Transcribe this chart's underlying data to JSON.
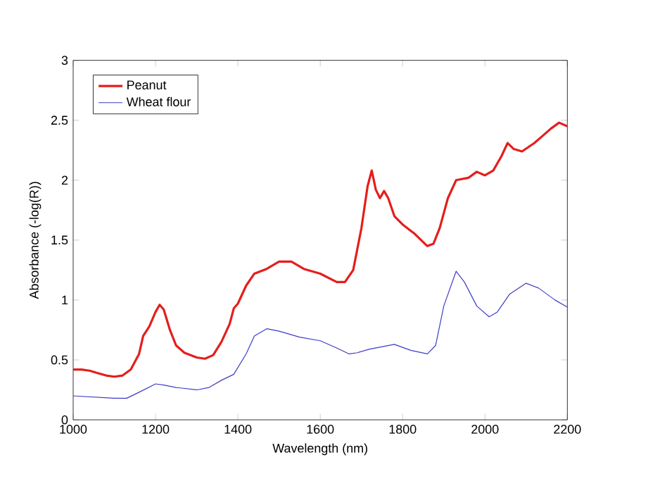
{
  "chart_data": {
    "type": "line",
    "xlabel": "Wavelength (nm)",
    "ylabel": "Absorbance (-log(R))",
    "xlim": [
      1000,
      2200
    ],
    "ylim": [
      0,
      3
    ],
    "xticks": [
      1000,
      1200,
      1400,
      1600,
      1800,
      2000,
      2200
    ],
    "yticks": [
      0,
      0.5,
      1,
      1.5,
      2,
      2.5,
      3
    ],
    "grid": false,
    "legend": "top left",
    "marker": "none",
    "line_style": "solid",
    "series": [
      {
        "name": "Peanut",
        "color": "#e41e1c",
        "x": [
          1000,
          1020,
          1040,
          1060,
          1080,
          1100,
          1120,
          1140,
          1160,
          1170,
          1185,
          1200,
          1210,
          1220,
          1235,
          1250,
          1270,
          1300,
          1320,
          1340,
          1360,
          1380,
          1390,
          1400,
          1420,
          1440,
          1470,
          1500,
          1530,
          1560,
          1600,
          1640,
          1660,
          1680,
          1700,
          1715,
          1725,
          1735,
          1745,
          1755,
          1765,
          1780,
          1800,
          1830,
          1860,
          1875,
          1890,
          1910,
          1930,
          1960,
          1980,
          2000,
          2020,
          2040,
          2055,
          2070,
          2090,
          2120,
          2140,
          2160,
          2180,
          2200
        ],
        "values": [
          0.42,
          0.42,
          0.41,
          0.39,
          0.37,
          0.36,
          0.37,
          0.42,
          0.55,
          0.7,
          0.78,
          0.9,
          0.96,
          0.92,
          0.75,
          0.62,
          0.56,
          0.52,
          0.51,
          0.54,
          0.65,
          0.8,
          0.93,
          0.97,
          1.12,
          1.22,
          1.26,
          1.32,
          1.32,
          1.26,
          1.22,
          1.15,
          1.15,
          1.25,
          1.6,
          1.95,
          2.08,
          1.92,
          1.85,
          1.91,
          1.85,
          1.7,
          1.63,
          1.55,
          1.45,
          1.47,
          1.6,
          1.85,
          2.0,
          2.02,
          2.07,
          2.04,
          2.08,
          2.2,
          2.31,
          2.26,
          2.24,
          2.31,
          2.37,
          2.43,
          2.48,
          2.45
        ]
      },
      {
        "name": "Wheat flour",
        "color": "#3c3cc8",
        "x": [
          1000,
          1050,
          1100,
          1130,
          1160,
          1200,
          1220,
          1250,
          1300,
          1330,
          1360,
          1390,
          1420,
          1440,
          1470,
          1500,
          1550,
          1600,
          1640,
          1670,
          1690,
          1720,
          1780,
          1820,
          1860,
          1880,
          1900,
          1930,
          1950,
          1980,
          2010,
          2030,
          2060,
          2100,
          2130,
          2170,
          2200
        ],
        "values": [
          0.2,
          0.19,
          0.18,
          0.18,
          0.23,
          0.3,
          0.29,
          0.27,
          0.25,
          0.27,
          0.33,
          0.38,
          0.55,
          0.7,
          0.76,
          0.74,
          0.69,
          0.66,
          0.6,
          0.55,
          0.56,
          0.59,
          0.63,
          0.58,
          0.55,
          0.62,
          0.95,
          1.24,
          1.15,
          0.95,
          0.86,
          0.9,
          1.05,
          1.14,
          1.1,
          1.0,
          0.94
        ]
      }
    ]
  }
}
